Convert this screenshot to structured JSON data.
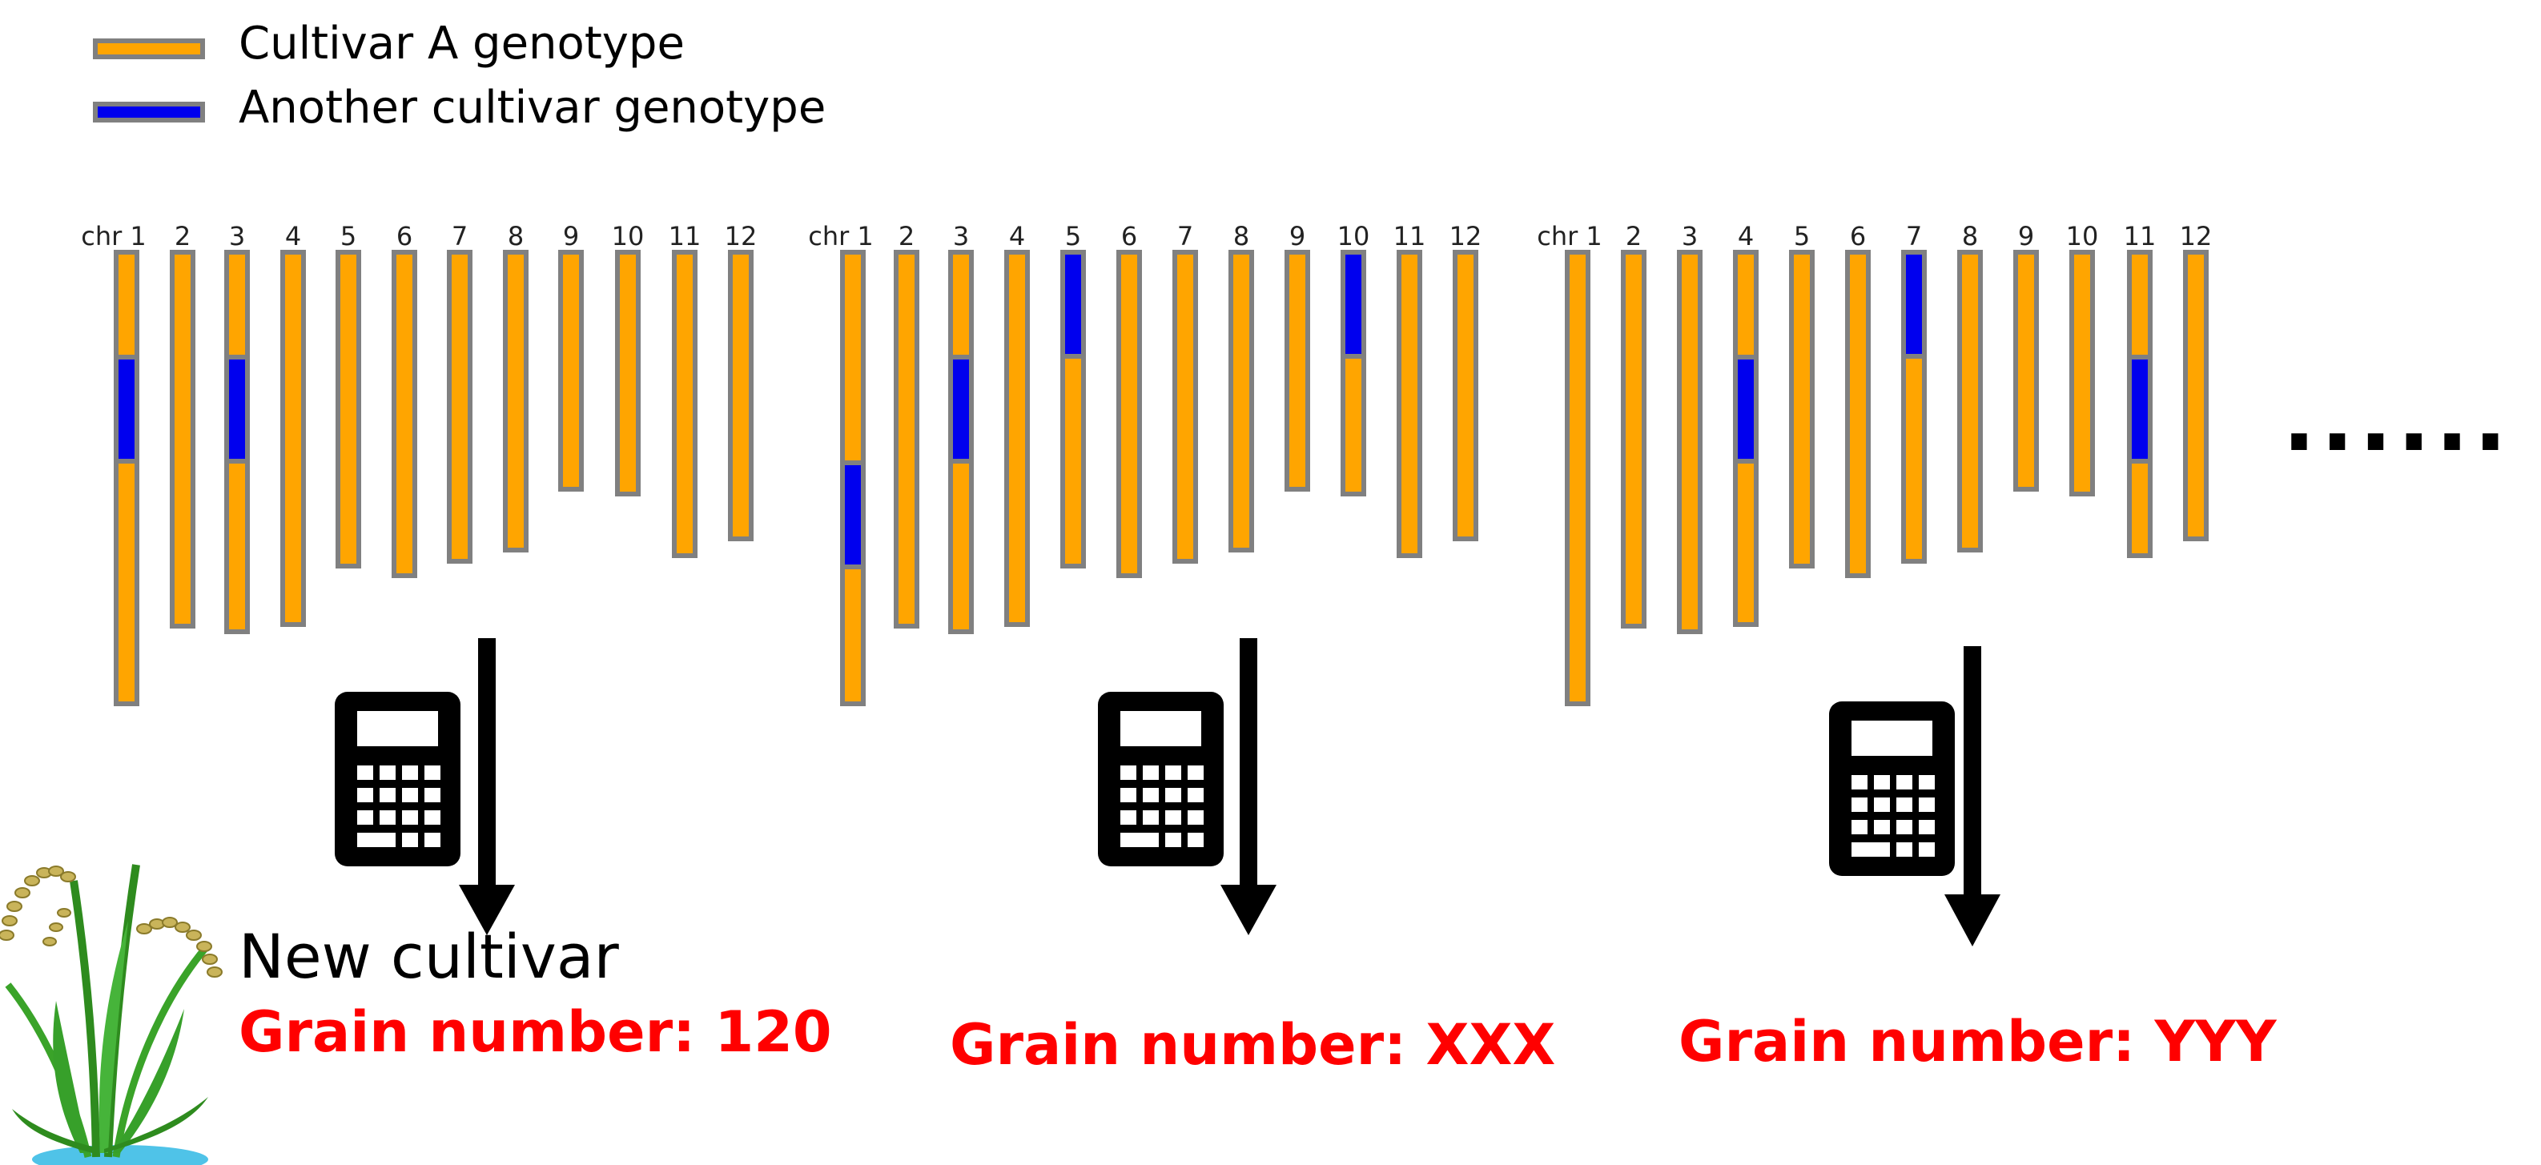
{
  "colors": {
    "cultivar_a": "#ffa500",
    "another": "#0000ee",
    "border": "#808080",
    "accent_text": "#ff0000"
  },
  "legend": {
    "items": [
      {
        "label": "Cultivar A genotype",
        "color": "#ffa500"
      },
      {
        "label": "Another cultivar genotype",
        "color": "#0000ee"
      }
    ]
  },
  "chromosome_labels": [
    "chr 1",
    "2",
    "3",
    "4",
    "5",
    "6",
    "7",
    "8",
    "9",
    "10",
    "11",
    "12"
  ],
  "genomes": [
    {
      "introgressions": [
        {
          "chr": 1,
          "segment": "middle"
        },
        {
          "chr": 3,
          "segment": "middle"
        }
      ],
      "result": "Grain number: 120"
    },
    {
      "introgressions": [
        {
          "chr": 1,
          "segment": "lower-middle"
        },
        {
          "chr": 3,
          "segment": "middle"
        },
        {
          "chr": 5,
          "segment": "top"
        },
        {
          "chr": 10,
          "segment": "top"
        }
      ],
      "result": "Grain number: XXX"
    },
    {
      "introgressions": [
        {
          "chr": 4,
          "segment": "middle"
        },
        {
          "chr": 7,
          "segment": "top"
        },
        {
          "chr": 11,
          "segment": "middle"
        }
      ],
      "result": "Grain number: YYY"
    }
  ],
  "new_cultivar_label": "New cultivar",
  "ellipsis": "......",
  "icons": [
    "calculator-icon",
    "down-arrow-icon",
    "rice-plant-icon"
  ]
}
